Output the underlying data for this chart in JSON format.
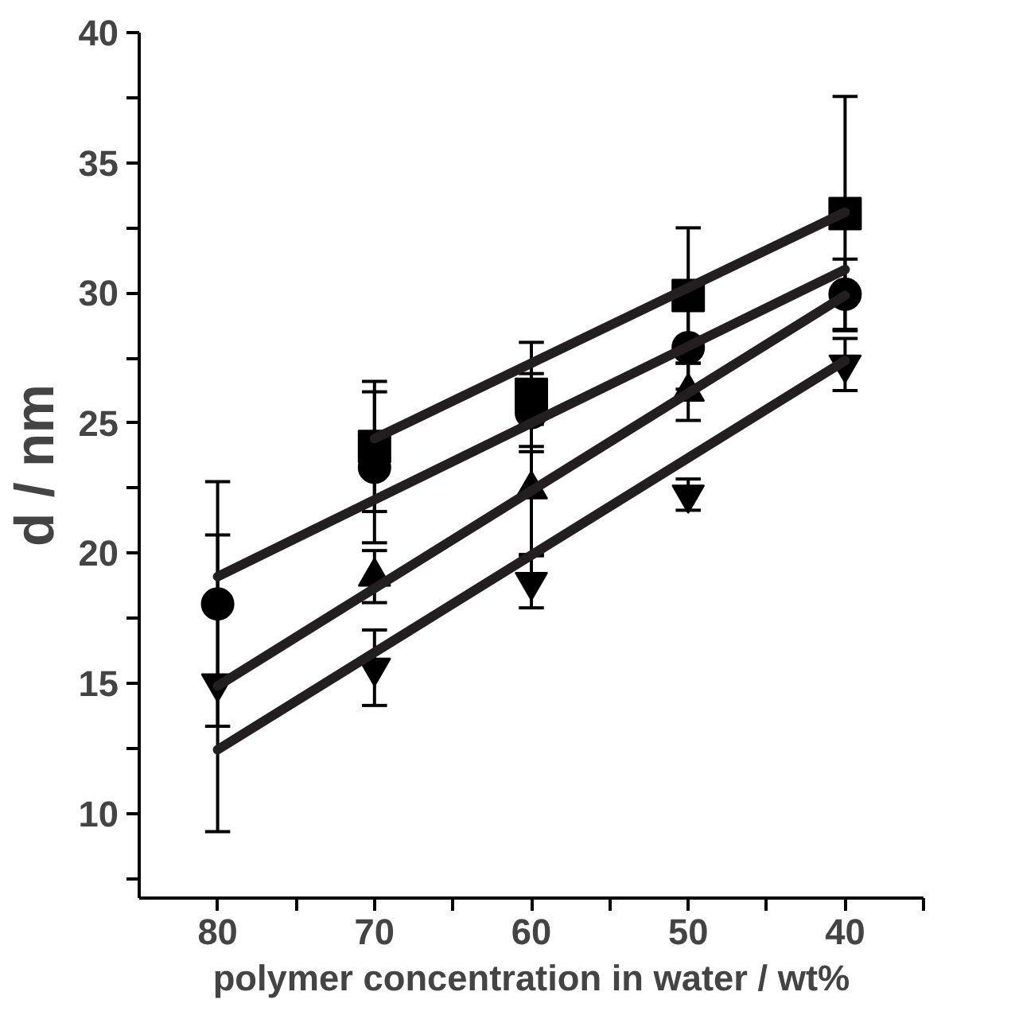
{
  "chart_data": {
    "type": "scatter",
    "xlabel": "polymer concentration in water / wt%",
    "ylabel": "d / nm",
    "x": [
      80,
      70,
      60,
      50,
      40
    ],
    "series": [
      {
        "marker": "square",
        "color": "#000000",
        "values": [
          null,
          24.1,
          26.1,
          29.9,
          33.05
        ],
        "errors": [
          null,
          2.5,
          2.0,
          2.6,
          4.5
        ]
      },
      {
        "marker": "circle",
        "color": "#000000",
        "values": [
          18.05,
          23.3,
          25.4,
          27.9,
          29.95
        ],
        "errors": [
          4.7,
          2.9,
          1.5,
          1.6,
          1.35
        ]
      },
      {
        "marker": "triangle",
        "color": "#000000",
        "values": [
          null,
          19.1,
          22.45,
          26.2,
          null
        ],
        "errors": [
          null,
          1.0,
          2.5,
          1.1,
          null
        ]
      },
      {
        "marker": "triangle_down",
        "color": "#000000",
        "values": [
          15.0,
          15.6,
          18.9,
          22.25,
          27.25
        ],
        "errors": [
          5.7,
          1.45,
          1.0,
          0.6,
          1.0
        ]
      },
      {
        "type": "line",
        "color": "#231f20",
        "x": [
          70,
          40
        ],
        "values": [
          24.4,
          33.1
        ]
      },
      {
        "type": "line",
        "color": "#231f20",
        "x": [
          80,
          40
        ],
        "values": [
          19.1,
          30.9
        ]
      },
      {
        "type": "line",
        "color": "#231f20",
        "x": [
          80,
          40
        ],
        "values": [
          14.9,
          29.9
        ]
      },
      {
        "type": "line",
        "color": "#231f20",
        "x": [
          80,
          40
        ],
        "values": [
          12.45,
          27.4
        ]
      }
    ],
    "xlim": [
      85,
      35
    ],
    "ylim": [
      6.75,
      40
    ],
    "xticks": [
      80,
      {
        "value": 75,
        "label": null
      },
      70,
      {
        "value": 65,
        "label": null
      },
      60,
      {
        "value": 55,
        "label": null
      },
      50,
      {
        "value": 45,
        "label": null
      },
      40,
      {
        "value": 35,
        "label": null
      }
    ],
    "yticks": [
      {
        "value": 7.5,
        "label": null
      },
      10,
      {
        "value": 12.5,
        "label": null
      },
      15,
      {
        "value": 17.5,
        "label": null
      },
      20,
      {
        "value": 22.5,
        "label": null
      },
      25,
      {
        "value": 27.5,
        "label": null
      },
      30,
      {
        "value": 32.5,
        "label": null
      },
      35,
      {
        "value": 37.5,
        "label": null
      },
      40
    ],
    "grid": false
  }
}
